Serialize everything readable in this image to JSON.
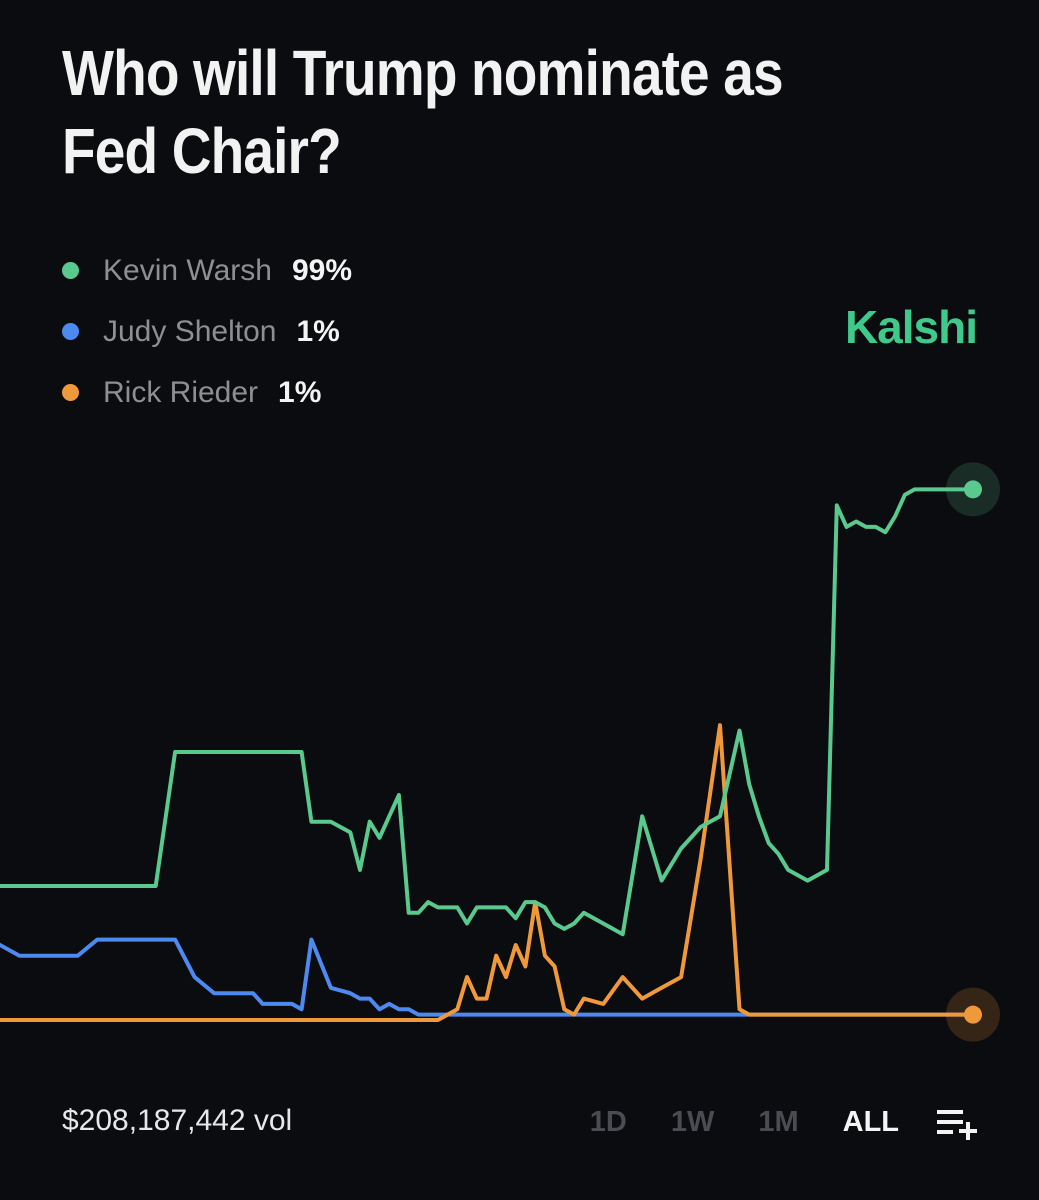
{
  "title": "Who will Trump nominate as Fed Chair?",
  "brand": "Kalshi",
  "legend": [
    {
      "name": "Kevin Warsh",
      "value": "99%",
      "color": "#59c98e"
    },
    {
      "name": "Judy Shelton",
      "value": "1%",
      "color": "#4d8af0"
    },
    {
      "name": "Rick Rieder",
      "value": "1%",
      "color": "#f0993a"
    }
  ],
  "footer": {
    "volume": "$208,187,442 vol",
    "ranges": [
      "1D",
      "1W",
      "1M",
      "ALL"
    ],
    "active_range": "ALL",
    "add_icon": "add-to-list-icon"
  },
  "chart_data": {
    "type": "line",
    "xlabel": "",
    "ylabel": "",
    "ylim": [
      0,
      100
    ],
    "grid": false,
    "x": [
      0,
      2,
      4,
      6,
      8,
      10,
      12,
      14,
      16,
      18,
      20,
      22,
      24,
      25,
      26,
      27,
      28,
      29,
      30,
      31,
      32,
      34,
      36,
      37,
      38,
      39,
      40,
      41,
      42,
      43,
      44,
      45,
      46,
      47,
      48,
      49,
      50,
      51,
      52,
      53,
      54,
      55,
      56,
      57,
      58,
      59,
      60,
      62,
      64,
      66,
      68,
      70,
      72,
      74,
      76,
      77,
      78,
      79,
      80,
      81,
      82,
      83,
      84,
      85,
      86,
      87,
      88,
      89,
      90,
      91,
      92,
      93,
      94,
      95,
      96,
      97,
      98,
      99,
      100
    ],
    "series": [
      {
        "name": "Kevin Warsh",
        "color": "#59c98e",
        "values": [
          25,
          25,
          25,
          25,
          25,
          25,
          25,
          25,
          25,
          50,
          50,
          50,
          50,
          50,
          50,
          50,
          50,
          50,
          50,
          50,
          37,
          37,
          35,
          28,
          37,
          34,
          38,
          42,
          20,
          20,
          22,
          21,
          21,
          21,
          18,
          21,
          21,
          21,
          21,
          19,
          22,
          22,
          21,
          18,
          17,
          18,
          20,
          18,
          16,
          38,
          26,
          32,
          36,
          38,
          54,
          44,
          38,
          33,
          31,
          28,
          27,
          26,
          27,
          28,
          96,
          92,
          93,
          92,
          92,
          91,
          94,
          98,
          99,
          99,
          99,
          99,
          99,
          99,
          99
        ]
      },
      {
        "name": "Judy Shelton",
        "color": "#4d8af0",
        "values": [
          14,
          12,
          12,
          12,
          12,
          15,
          15,
          15,
          15,
          15,
          8,
          5,
          5,
          5,
          5,
          3,
          3,
          3,
          3,
          2,
          15,
          6,
          5,
          4,
          4,
          2,
          3,
          2,
          2,
          1,
          1,
          1,
          1,
          1,
          1,
          1,
          1,
          1,
          1,
          1,
          1,
          1,
          1,
          1,
          1,
          1,
          1,
          1,
          1,
          1,
          1,
          1,
          1,
          1,
          1,
          1,
          1,
          1,
          1,
          1,
          1,
          1,
          1,
          1,
          1,
          1,
          1,
          1,
          1,
          1,
          1,
          1,
          1,
          1,
          1,
          1,
          1,
          1,
          1
        ]
      },
      {
        "name": "Rick Rieder",
        "color": "#f0993a",
        "values": [
          0,
          0,
          0,
          0,
          0,
          0,
          0,
          0,
          0,
          0,
          0,
          0,
          0,
          0,
          0,
          0,
          0,
          0,
          0,
          0,
          0,
          0,
          0,
          0,
          0,
          0,
          0,
          0,
          0,
          0,
          0,
          0,
          1,
          2,
          8,
          4,
          4,
          12,
          8,
          14,
          10,
          22,
          12,
          10,
          2,
          1,
          4,
          3,
          8,
          4,
          6,
          8,
          30,
          55,
          2,
          1,
          1,
          1,
          1,
          1,
          1,
          1,
          1,
          1,
          1,
          1,
          1,
          1,
          1,
          1,
          1,
          1,
          1,
          1,
          1,
          1,
          1,
          1,
          1
        ]
      }
    ]
  }
}
